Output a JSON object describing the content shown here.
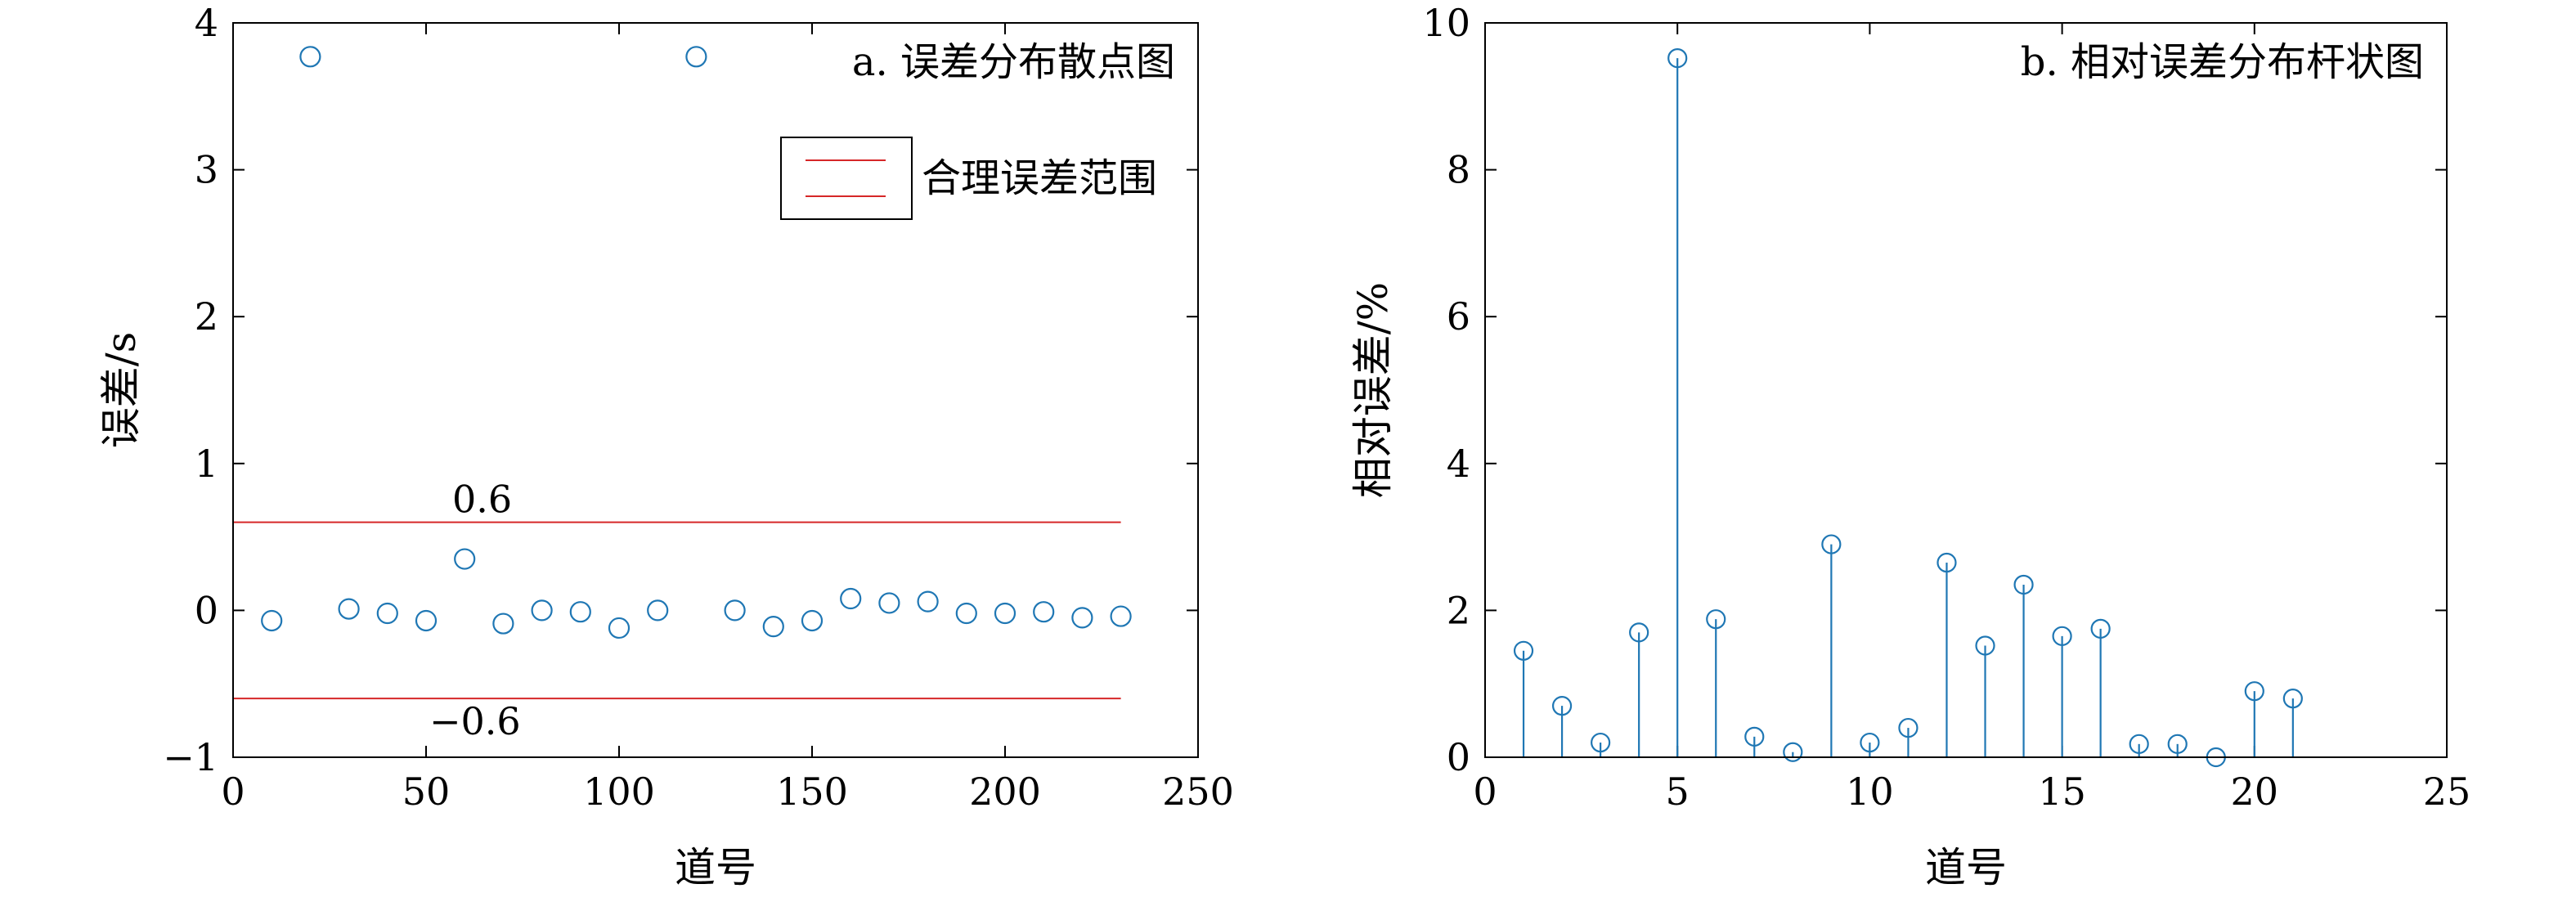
{
  "chart_data": [
    {
      "id": "a",
      "type": "scatter",
      "title": "a. 误差分布散点图",
      "xlabel": "道号",
      "ylabel": "误差/s",
      "xlim": [
        0,
        250
      ],
      "ylim": [
        -1,
        4
      ],
      "xticks": [
        0,
        50,
        100,
        150,
        200,
        250
      ],
      "yticks": [
        -1,
        0,
        1,
        2,
        3,
        4
      ],
      "xtick_labels": [
        "0",
        "50",
        "100",
        "150",
        "200",
        "250"
      ],
      "ytick_labels": [
        "−1",
        "0",
        "1",
        "2",
        "3",
        "4"
      ],
      "marker_color": "#1f77b4",
      "points": [
        {
          "x": 10,
          "y": -0.07
        },
        {
          "x": 20,
          "y": 3.77
        },
        {
          "x": 30,
          "y": 0.01
        },
        {
          "x": 40,
          "y": -0.02
        },
        {
          "x": 50,
          "y": -0.07
        },
        {
          "x": 60,
          "y": 0.35
        },
        {
          "x": 70,
          "y": -0.09
        },
        {
          "x": 80,
          "y": 0.0
        },
        {
          "x": 90,
          "y": -0.01
        },
        {
          "x": 100,
          "y": -0.12
        },
        {
          "x": 110,
          "y": 0.0
        },
        {
          "x": 120,
          "y": 3.77
        },
        {
          "x": 130,
          "y": 0.0
        },
        {
          "x": 140,
          "y": -0.11
        },
        {
          "x": 150,
          "y": -0.07
        },
        {
          "x": 160,
          "y": 0.08
        },
        {
          "x": 170,
          "y": 0.05
        },
        {
          "x": 180,
          "y": 0.06
        },
        {
          "x": 190,
          "y": -0.02
        },
        {
          "x": 200,
          "y": -0.02
        },
        {
          "x": 210,
          "y": -0.01
        },
        {
          "x": 220,
          "y": -0.05
        },
        {
          "x": 230,
          "y": -0.04
        }
      ],
      "ref_lines": [
        {
          "y": 0.6,
          "label": "0.6",
          "x_start": 0,
          "x_end": 230
        },
        {
          "y": -0.6,
          "label": "−0.6",
          "x_start": 0,
          "x_end": 230
        }
      ],
      "ref_line_color": "#d62728",
      "legend": {
        "label": "合理误差范围",
        "placement": "upper-right"
      }
    },
    {
      "id": "b",
      "type": "stem",
      "title": "b. 相对误差分布杆状图",
      "xlabel": "道号",
      "ylabel": "相对误差/%",
      "xlim": [
        0,
        25
      ],
      "ylim": [
        0,
        10
      ],
      "xticks": [
        0,
        5,
        10,
        15,
        20,
        25
      ],
      "yticks": [
        0,
        2,
        4,
        6,
        8,
        10
      ],
      "xtick_labels": [
        "0",
        "5",
        "10",
        "15",
        "20",
        "25"
      ],
      "ytick_labels": [
        "0",
        "2",
        "4",
        "6",
        "8",
        "10"
      ],
      "stem_color": "#1f77b4",
      "x": [
        1,
        2,
        3,
        4,
        5,
        6,
        7,
        8,
        9,
        10,
        11,
        12,
        13,
        14,
        15,
        16,
        17,
        18,
        19,
        20,
        21
      ],
      "values": [
        1.45,
        0.7,
        0.2,
        1.7,
        9.52,
        1.88,
        0.28,
        0.07,
        2.9,
        0.2,
        0.4,
        2.65,
        1.52,
        2.35,
        1.65,
        1.75,
        0.18,
        0.18,
        0.0,
        0.9,
        0.8
      ]
    }
  ]
}
